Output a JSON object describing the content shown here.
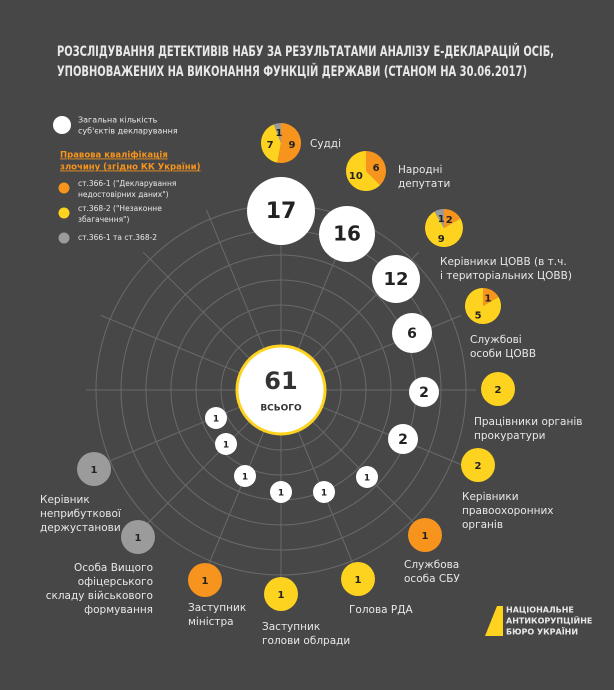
{
  "chart_data": {
    "type": "radial",
    "title": [
      "РОЗСЛІДУВАННЯ ДЕТЕКТИВІВ НАБУ ЗА РЕЗУЛЬТАТАМИ АНАЛІЗУ Е-ДЕКЛАРАЦІЙ ОСІБ,",
      "УПОВНОВАЖЕНИХ НА ВИКОНАННЯ ФУНКЦІЙ ДЕРЖАВИ (СТАНОМ НА 30.06.2017)"
    ],
    "total_legend": [
      "Загальна кількість",
      "суб'єктів декларування"
    ],
    "legend_title": [
      "Правова кваліфікація",
      "злочину (згідно КК України)"
    ],
    "total": {
      "value": 61,
      "label": "ВСЬОГО"
    },
    "categories": [
      [
        "Судді"
      ],
      [
        "Народні",
        "депутати"
      ],
      [
        "Керівники ЦОВВ (в т.ч.",
        "і територіальних ЦОВВ)"
      ],
      [
        "Службові",
        "особи ЦОВВ"
      ],
      [
        "Працівники органів",
        "прокуратури"
      ],
      [
        "Керівники",
        "правоохоронних",
        "органів"
      ],
      [
        "Службова",
        "особа СБУ"
      ],
      [
        "Голова РДА"
      ],
      [
        "Заступник",
        "голови облради"
      ],
      [
        "Заступник",
        "міністра"
      ],
      [
        "Особа Вищого",
        "офіцерського",
        "складу військового",
        "формування"
      ],
      [
        "Керівник",
        "неприбуткової",
        "держустанови"
      ]
    ],
    "values": [
      17,
      16,
      12,
      6,
      2,
      2,
      1,
      1,
      1,
      1,
      1,
      1
    ],
    "series": [
      {
        "name": [
          "ст.366-1 (\"Декларування",
          "недостовірних даних\")"
        ],
        "color": "#f7941d",
        "values": [
          9,
          6,
          2,
          1,
          null,
          null,
          1,
          null,
          null,
          1,
          null,
          null
        ]
      },
      {
        "name": [
          "ст.368-2 (\"Незаконне",
          "збагачення\")"
        ],
        "color": "#fdd31f",
        "values": [
          7,
          10,
          9,
          5,
          2,
          2,
          null,
          1,
          1,
          null,
          null,
          null
        ]
      },
      {
        "name": [
          "ст.366-1 та ст.368-2"
        ],
        "color": "#9b9b9b",
        "values": [
          1,
          null,
          1,
          null,
          null,
          null,
          null,
          null,
          null,
          null,
          1,
          1
        ]
      }
    ],
    "logo": [
      "НАЦІОНАЛЬНЕ",
      "АНТИКОРУПЦІЙНЕ",
      "БЮРО УКРАЇНИ"
    ]
  }
}
